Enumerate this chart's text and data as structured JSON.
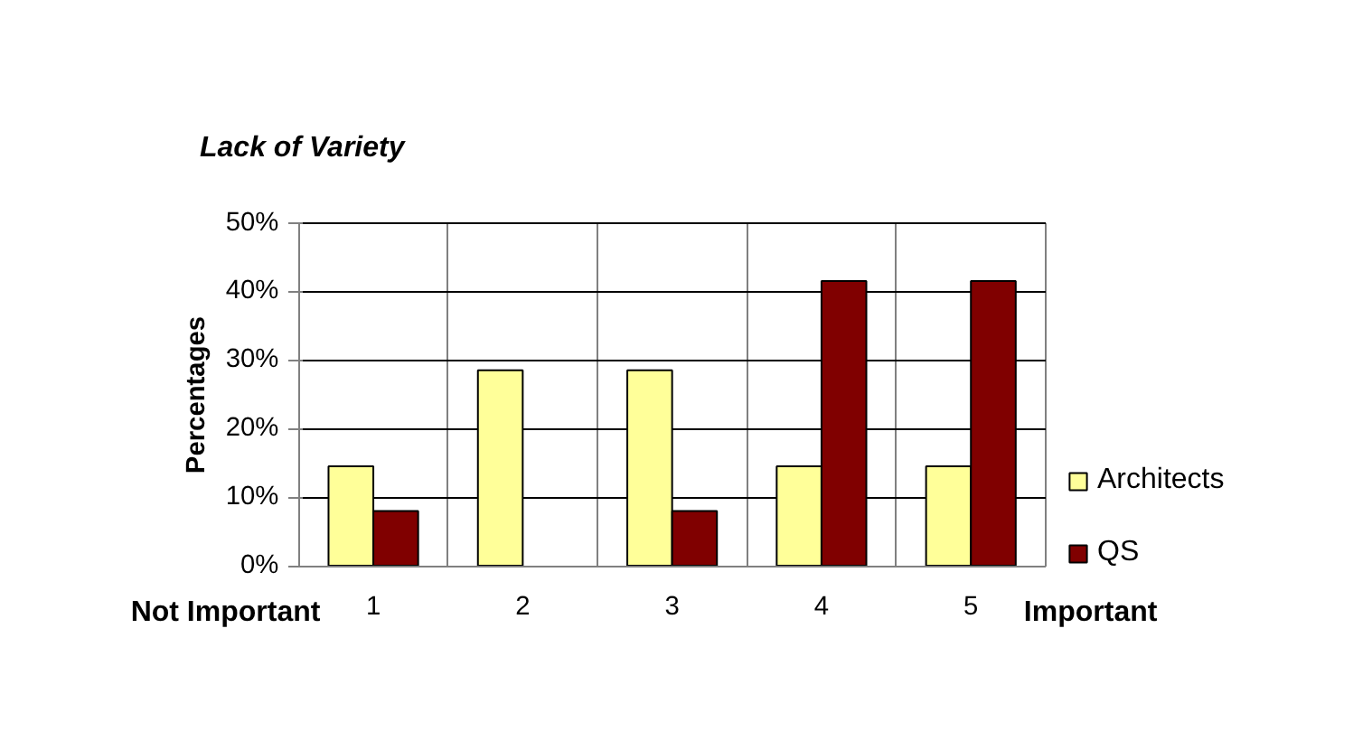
{
  "chart_data": {
    "type": "bar",
    "title": "Lack of Variety",
    "ylabel": "Percentages",
    "categories": [
      "1",
      "2",
      "3",
      "4",
      "5"
    ],
    "series": [
      {
        "name": "Architects",
        "color": "#ffff99",
        "values": [
          14.5,
          28.5,
          28.5,
          14.5,
          14.5
        ]
      },
      {
        "name": "QS",
        "color": "#800000",
        "values": [
          8,
          0,
          8,
          41.5,
          41.5
        ]
      }
    ],
    "ylim": [
      0,
      50
    ],
    "yticks": [
      {
        "value": 0,
        "label": "0%"
      },
      {
        "value": 10,
        "label": "10%"
      },
      {
        "value": 20,
        "label": "20%"
      },
      {
        "value": 30,
        "label": "30%"
      },
      {
        "value": 40,
        "label": "40%"
      },
      {
        "value": 50,
        "label": "50%"
      }
    ],
    "annotations": [
      "Not Important",
      "Important"
    ],
    "grid": true,
    "legend": "right"
  }
}
